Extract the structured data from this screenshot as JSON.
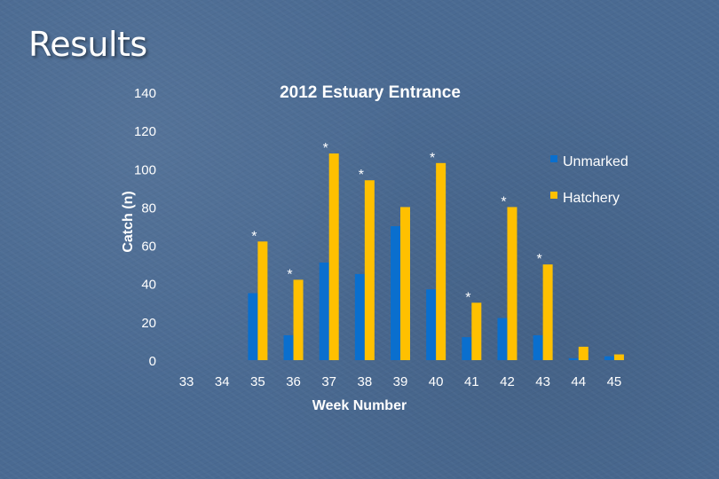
{
  "slide": {
    "title": "Results"
  },
  "chart_data": {
    "type": "bar",
    "title": "2012 Estuary Entrance",
    "xlabel": "Week Number",
    "ylabel": "Catch (n)",
    "ylim": [
      0,
      140
    ],
    "yticks": [
      0,
      20,
      40,
      60,
      80,
      100,
      120,
      140
    ],
    "categories": [
      "33",
      "34",
      "35",
      "36",
      "37",
      "38",
      "39",
      "40",
      "41",
      "42",
      "43",
      "44",
      "45"
    ],
    "series": [
      {
        "name": "Unmarked",
        "color": "#0a6fce",
        "values": [
          0,
          0,
          35,
          13,
          51,
          45,
          70,
          37,
          12,
          22,
          13,
          1,
          2
        ]
      },
      {
        "name": "Hatchery",
        "color": "#ffc000",
        "values": [
          0,
          0,
          62,
          42,
          108,
          94,
          80,
          103,
          30,
          80,
          50,
          7,
          3
        ]
      }
    ],
    "annotations": [
      {
        "category": "35",
        "text": "*"
      },
      {
        "category": "36",
        "text": "*"
      },
      {
        "category": "37",
        "text": "*"
      },
      {
        "category": "38",
        "text": "*"
      },
      {
        "category": "40",
        "text": "*"
      },
      {
        "category": "41",
        "text": "*"
      },
      {
        "category": "42",
        "text": "*"
      },
      {
        "category": "43",
        "text": "*"
      }
    ],
    "legend_position": "right",
    "grid": false
  }
}
